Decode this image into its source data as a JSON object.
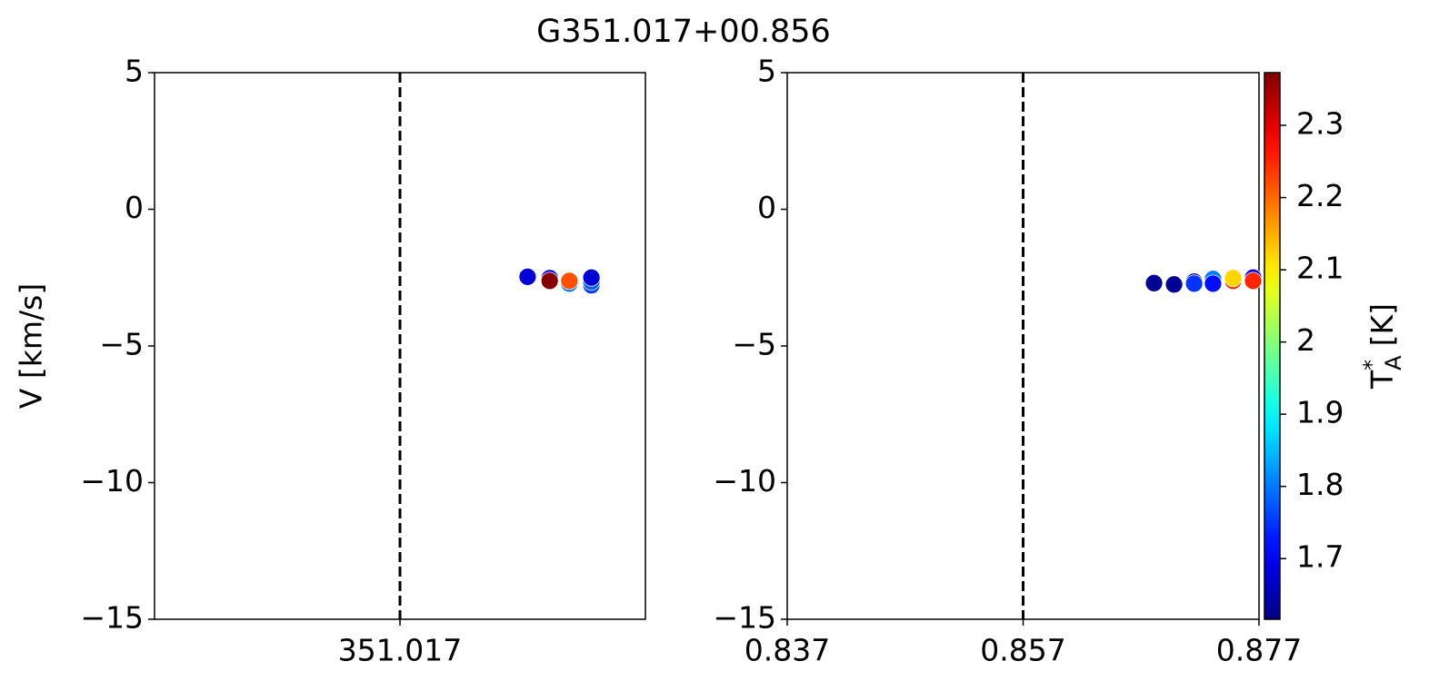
{
  "title": "G351.017+00.856",
  "chart_data": [
    {
      "type": "scatter",
      "ylabel": "V [km/s]",
      "xlim": [
        351.007,
        351.027
      ],
      "xticks": [
        351.017
      ],
      "ylim": [
        -15,
        5
      ],
      "yticks": [
        {
          "value": -15,
          "label": "−15"
        },
        {
          "value": -10,
          "label": "−10"
        },
        {
          "value": -5,
          "label": "−5"
        },
        0,
        5
      ],
      "vline": 351.017,
      "series": [
        {
          "x": [
            351.0222,
            351.0231,
            351.0231,
            351.0239,
            351.0239,
            351.0248,
            351.0248,
            351.0248
          ],
          "values": [
            -2.47,
            -2.52,
            -2.62,
            -2.72,
            -2.62,
            -2.78,
            -2.65,
            -2.5
          ],
          "c": [
            1.68,
            1.7,
            2.37,
            1.8,
            2.22,
            1.75,
            1.78,
            1.68
          ]
        }
      ]
    },
    {
      "type": "scatter",
      "xlim": [
        0.837,
        0.877
      ],
      "xticks": [
        0.837,
        0.857,
        0.877
      ],
      "ylim": [
        -15,
        5
      ],
      "yticks": [
        {
          "value": -15,
          "label": "−15"
        },
        {
          "value": -10,
          "label": "−10"
        },
        {
          "value": -5,
          "label": "−5"
        },
        0,
        5
      ],
      "vline": 0.857,
      "series": [
        {
          "x": [
            0.8681,
            0.8698,
            0.8715,
            0.8715,
            0.8731,
            0.8731,
            0.8748,
            0.8748,
            0.8765,
            0.8765
          ],
          "values": [
            -2.7,
            -2.75,
            -2.65,
            -2.72,
            -2.55,
            -2.72,
            -2.62,
            -2.52,
            -2.5,
            -2.62
          ],
          "c": [
            1.63,
            1.63,
            1.66,
            1.75,
            1.8,
            1.72,
            2.25,
            2.12,
            1.7,
            2.25
          ]
        }
      ],
      "colorbar": {
        "colormap": "jet",
        "clim": [
          1.616,
          2.373
        ],
        "ticks": [
          1.7,
          1.8,
          1.9,
          2.0,
          2.1,
          2.2,
          2.3
        ],
        "label": {
          "base": "T",
          "sup": "*",
          "sub": "A",
          "unit": "[K]"
        }
      }
    }
  ]
}
